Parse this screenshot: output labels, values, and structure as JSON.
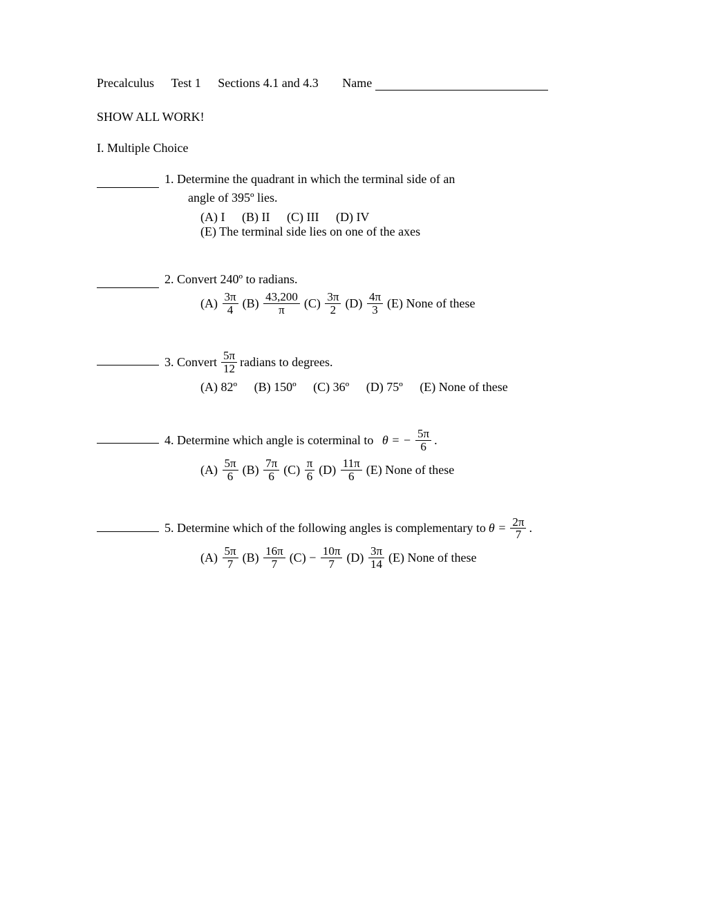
{
  "header": {
    "course": "Precalculus",
    "test": "Test 1",
    "sections": "Sections 4.1 and 4.3",
    "name_label": "Name"
  },
  "show_work": "SHOW ALL WORK!",
  "section_label": "I. Multiple Choice",
  "q1": {
    "line1": "1. Determine the quadrant in which the terminal side of an",
    "line2": "angle of 395º lies.",
    "optA": "(A) I",
    "optB": "(B) II",
    "optC": "(C) III",
    "optD": "(D) IV",
    "optE": "(E) The terminal side lies on one of the axes"
  },
  "q2": {
    "stem": "2. Convert  240º to radians.",
    "optA_label": "(A)",
    "optA_num": "3π",
    "optA_den": "4",
    "optB_label": "(B)",
    "optB_num": "43,200",
    "optB_den": "π",
    "optC_label": "(C)",
    "optC_num": "3π",
    "optC_den": "2",
    "optD_label": "(D)",
    "optD_num": "4π",
    "optD_den": "3",
    "optE": "(E)  None of these"
  },
  "q3": {
    "stem_before": "3. Convert",
    "frac_num": "5π",
    "frac_den": "12",
    "stem_after": "radians to degrees.",
    "optA": "(A) 82º",
    "optB": "(B) 150º",
    "optC": "(C) 36º",
    "optD": "(D) 75º",
    "optE": "(E) None of these"
  },
  "q4": {
    "stem_before": "4. Determine which angle is coterminal to",
    "theta_eq": "θ = −",
    "frac_num": "5π",
    "frac_den": "6",
    "period": ".",
    "optA_label": "(A)",
    "optA_num": "5π",
    "optA_den": "6",
    "optB_label": "(B)",
    "optB_num": "7π",
    "optB_den": "6",
    "optC_label": "(C)",
    "optC_num": "π",
    "optC_den": "6",
    "optD_label": "(D)",
    "optD_num": "11π",
    "optD_den": "6",
    "optE": "(E) None of these"
  },
  "q5": {
    "stem_before": "5. Determine which of the following angles is complementary to",
    "theta_eq": "θ =",
    "frac_num": "2π",
    "frac_den": "7",
    "period": ".",
    "optA_label": "(A)",
    "optA_num": "5π",
    "optA_den": "7",
    "optB_label": "(B)",
    "optB_num": "16π",
    "optB_den": "7",
    "optC_label": "(C)",
    "optC_neg": "−",
    "optC_num": "10π",
    "optC_den": "7",
    "optD_label": "(D)",
    "optD_num": "3π",
    "optD_den": "14",
    "optE": "(E) None of these"
  }
}
